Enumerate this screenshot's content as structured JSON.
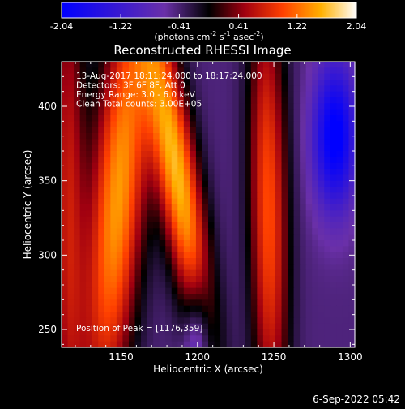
{
  "chart_data": {
    "type": "heatmap",
    "title": "Reconstructed RHESSI Image",
    "xlabel": "Heliocentric X (arcsec)",
    "ylabel": "Heliocentric Y (arcsec)",
    "xlim": [
      1111,
      1303
    ],
    "ylim": [
      238,
      430
    ],
    "x_ticks": [
      1150,
      1200,
      1250,
      1300
    ],
    "y_ticks": [
      250,
      300,
      350,
      400
    ],
    "colorbar": {
      "min": -2.04,
      "max": 2.04,
      "ticks": [
        "-2.04",
        "-1.22",
        "-0.41",
        "0.41",
        "1.22",
        "2.04"
      ],
      "units_prefix": "(photons cm",
      "units_exp1": "-2",
      "units_mid": " s",
      "units_exp2": "-1",
      "units_mid2": " asec",
      "units_exp3": "-2",
      "units_suffix": ")"
    },
    "annotations": [
      "13-Aug-2017 18:11:24.000 to 18:17:24.000",
      "Detectors: 3F 6F 8F, Att 0",
      "Energy Range: 3.0 - 6.0 keV",
      "Clean     Total counts: 3.00E+05"
    ],
    "peak_label": "Position of Peak = [1176,359]",
    "peak": [
      1176,
      359
    ],
    "ridges": [
      {
        "x_at_top": 1115,
        "x_at_bottom": 1115,
        "width": 8,
        "peak": 1.1,
        "y_center": 340,
        "y_span": 140
      },
      {
        "x_at_top": 1155,
        "x_at_bottom": 1140,
        "width": 13,
        "peak": 1.9,
        "y_center": 340,
        "y_span": 110
      },
      {
        "x_at_top": 1175,
        "x_at_bottom": 1205,
        "width": 10,
        "peak": 2.04,
        "y_center": 355,
        "y_span": 80
      },
      {
        "x_at_top": 1245,
        "x_at_bottom": 1248,
        "width": 9,
        "peak": 1.5,
        "y_center": 330,
        "y_span": 110
      },
      {
        "x_at_top": 1290,
        "x_at_bottom": 1290,
        "width": 10,
        "peak": -1.7,
        "y_center": 380,
        "y_span": 35
      },
      {
        "x_at_top": 1200,
        "x_at_bottom": 1200,
        "width": 6,
        "peak": -0.9,
        "y_center": 240,
        "y_span": 30
      }
    ],
    "timestamp": "6-Sep-2022 05:42"
  }
}
